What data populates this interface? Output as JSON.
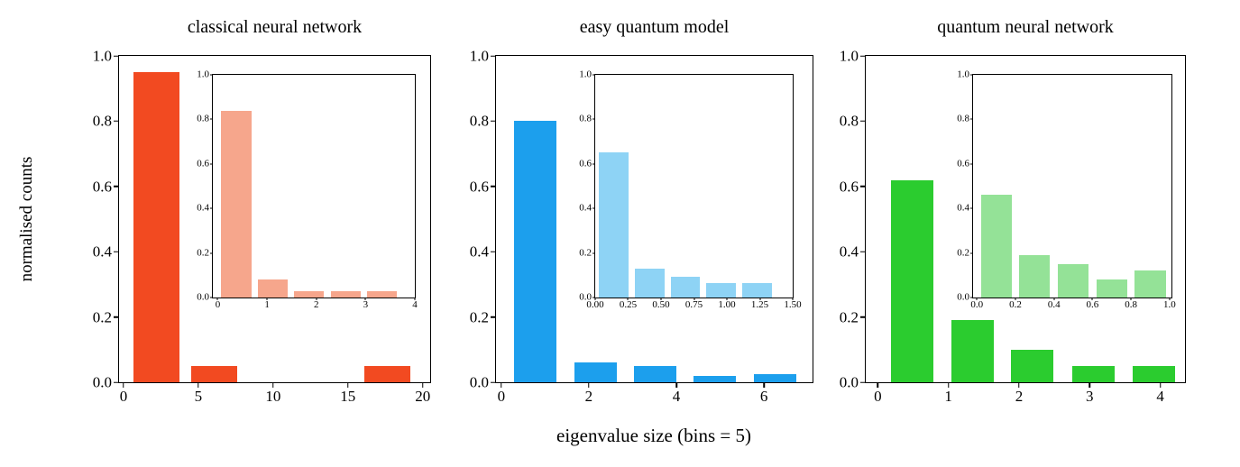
{
  "figure": {
    "ylabel": "normalised counts",
    "xlabel": "eigenvalue size (bins = 5)"
  },
  "chart_data": [
    {
      "type": "bar",
      "title": "classical neural network",
      "color": "#f24a21",
      "inset_color": "#f6a68c",
      "main": {
        "x_centers": [
          2.19,
          6.05,
          9.91,
          13.77,
          17.63
        ],
        "heights": [
          0.95,
          0.05,
          0,
          0,
          0.05
        ],
        "bar_width": 3.06,
        "xlim": [
          -0.3,
          20.5
        ],
        "ylim": [
          0,
          1
        ],
        "xticks": [
          "0",
          "5",
          "10",
          "15",
          "20"
        ],
        "yticks": [
          "0.0",
          "0.2",
          "0.4",
          "0.6",
          "0.8",
          "1.0"
        ]
      },
      "inset": {
        "x_centers": [
          0.375,
          1.115,
          1.855,
          2.595,
          3.335
        ],
        "heights": [
          0.84,
          0.08,
          0.03,
          0.03,
          0.03
        ],
        "bar_width": 0.61,
        "xlim": [
          -0.1,
          4.0
        ],
        "ylim": [
          0,
          1
        ],
        "xticks": [
          "0",
          "1",
          "2",
          "3",
          "4"
        ],
        "yticks": [
          "0.0",
          "0.2",
          "0.4",
          "0.6",
          "0.8",
          "1.0"
        ]
      }
    },
    {
      "type": "bar",
      "title": "easy quantum model",
      "color": "#1c9fed",
      "inset_color": "#8ed3f5",
      "main": {
        "x_centers": [
          0.78,
          2.15,
          3.52,
          4.88,
          6.25
        ],
        "heights": [
          0.8,
          0.06,
          0.05,
          0.02,
          0.025
        ],
        "bar_width": 0.97,
        "xlim": [
          -0.12,
          7.11
        ],
        "ylim": [
          0,
          1
        ],
        "xticks": [
          "0",
          "2",
          "4",
          "6"
        ],
        "yticks": [
          "0.0",
          "0.2",
          "0.4",
          "0.6",
          "0.8",
          "1.0"
        ]
      },
      "inset": {
        "x_centers": [
          0.14,
          0.415,
          0.685,
          0.955,
          1.23
        ],
        "heights": [
          0.65,
          0.13,
          0.095,
          0.065,
          0.065
        ],
        "bar_width": 0.225,
        "xlim": [
          0,
          1.5
        ],
        "ylim": [
          0,
          1
        ],
        "xticks": [
          "0.00",
          "0.25",
          "0.50",
          "0.75",
          "1.00",
          "1.25",
          "1.50"
        ],
        "yticks": [
          "0.0",
          "0.2",
          "0.4",
          "0.6",
          "0.8",
          "1.0"
        ]
      }
    },
    {
      "type": "bar",
      "title": "quantum neural network",
      "color": "#2bcc2f",
      "inset_color": "#94e297",
      "main": {
        "x_centers": [
          0.485,
          1.34,
          2.19,
          3.05,
          3.91
        ],
        "heights": [
          0.62,
          0.19,
          0.1,
          0.05,
          0.05
        ],
        "bar_width": 0.6,
        "xlim": [
          -0.17,
          4.35
        ],
        "ylim": [
          0,
          1
        ],
        "xticks": [
          "0",
          "1",
          "2",
          "3",
          "4"
        ],
        "yticks": [
          "0.0",
          "0.2",
          "0.4",
          "0.6",
          "0.8",
          "1.0"
        ]
      },
      "inset": {
        "x_centers": [
          0.1,
          0.3,
          0.5,
          0.7,
          0.9
        ],
        "heights": [
          0.46,
          0.19,
          0.15,
          0.08,
          0.12
        ],
        "bar_width": 0.16,
        "xlim": [
          -0.02,
          1.01
        ],
        "ylim": [
          0,
          1
        ],
        "xticks": [
          "0.0",
          "0.2",
          "0.4",
          "0.6",
          "0.8",
          "1.0"
        ],
        "yticks": [
          "0.0",
          "0.2",
          "0.4",
          "0.6",
          "0.8",
          "1.0"
        ]
      }
    }
  ]
}
